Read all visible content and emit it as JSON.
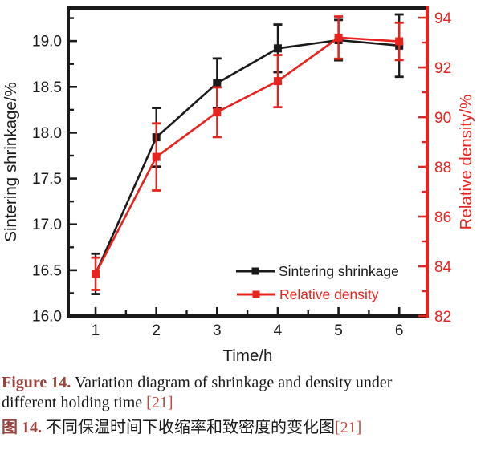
{
  "colors": {
    "caption_label": "#9a423b",
    "citation": "#bf4a45",
    "axis_left": "#1a1a1a",
    "axis_right": "#e8231d"
  },
  "figure": {
    "caption_en": {
      "label": "Figure 14.",
      "text_line1": "Variation diagram of shrinkage and density under",
      "text_line2": "different holding time",
      "citation": "[21]"
    },
    "caption_zh": {
      "label": "图 14.",
      "text": "不同保温时间下收缩率和致密度的变化图",
      "citation": "[21]"
    }
  },
  "chart_data": {
    "type": "line",
    "title": "",
    "xlabel": "Time/h",
    "x": [
      1,
      2,
      3,
      4,
      5,
      6
    ],
    "x_axis": {
      "min": 0.55,
      "max": 6.46,
      "major_ticks": [
        {
          "v": 1,
          "label": "1"
        },
        {
          "v": 2,
          "label": "2"
        },
        {
          "v": 3,
          "label": "3"
        },
        {
          "v": 4,
          "label": "4"
        },
        {
          "v": 5,
          "label": "5"
        },
        {
          "v": 6,
          "label": "6"
        }
      ],
      "minor_ticks": [
        1.5,
        2.5,
        3.5,
        4.5,
        5.5
      ],
      "color": "#1a1a1a"
    },
    "left_axis": {
      "label": "Sintering shrinkage/%",
      "min": 16.0,
      "max": 19.36,
      "major_ticks": [
        {
          "v": 16.0,
          "label": "16.0"
        },
        {
          "v": 16.5,
          "label": "16.5"
        },
        {
          "v": 17.0,
          "label": "17.0"
        },
        {
          "v": 17.5,
          "label": "17.5"
        },
        {
          "v": 18.0,
          "label": "18.0"
        },
        {
          "v": 18.5,
          "label": "18.5"
        },
        {
          "v": 19.0,
          "label": "19.0"
        }
      ],
      "minor_ticks": [
        16.25,
        16.75,
        17.25,
        17.75,
        18.25,
        18.75,
        19.25
      ],
      "color": "#1a1a1a"
    },
    "right_axis": {
      "label": "Relative density/%",
      "min": 82,
      "max": 94.39,
      "major_ticks": [
        {
          "v": 82,
          "label": "82"
        },
        {
          "v": 84,
          "label": "84"
        },
        {
          "v": 86,
          "label": "86"
        },
        {
          "v": 88,
          "label": "88"
        },
        {
          "v": 90,
          "label": "90"
        },
        {
          "v": 92,
          "label": "92"
        },
        {
          "v": 94,
          "label": "94"
        }
      ],
      "minor_ticks": [
        83,
        85,
        87,
        89,
        91,
        93
      ],
      "color": "#e8231d"
    },
    "series": [
      {
        "name": "Sintering shrinkage",
        "axis": "left",
        "color": "#1a1a1a",
        "marker": "square",
        "values": [
          16.46,
          17.95,
          18.54,
          18.92,
          19.01,
          18.95
        ],
        "errors": [
          0.22,
          0.32,
          0.27,
          0.26,
          0.22,
          0.34
        ]
      },
      {
        "name": "Relative density",
        "axis": "right",
        "color": "#e8231d",
        "marker": "square",
        "values": [
          83.7,
          88.4,
          90.2,
          91.45,
          93.2,
          93.05
        ],
        "errors": [
          0.65,
          1.35,
          1.0,
          1.05,
          0.85,
          0.75
        ]
      }
    ],
    "legend": {
      "position": "inside-bottom-right",
      "entries": [
        "Sintering shrinkage",
        "Relative density"
      ]
    }
  }
}
